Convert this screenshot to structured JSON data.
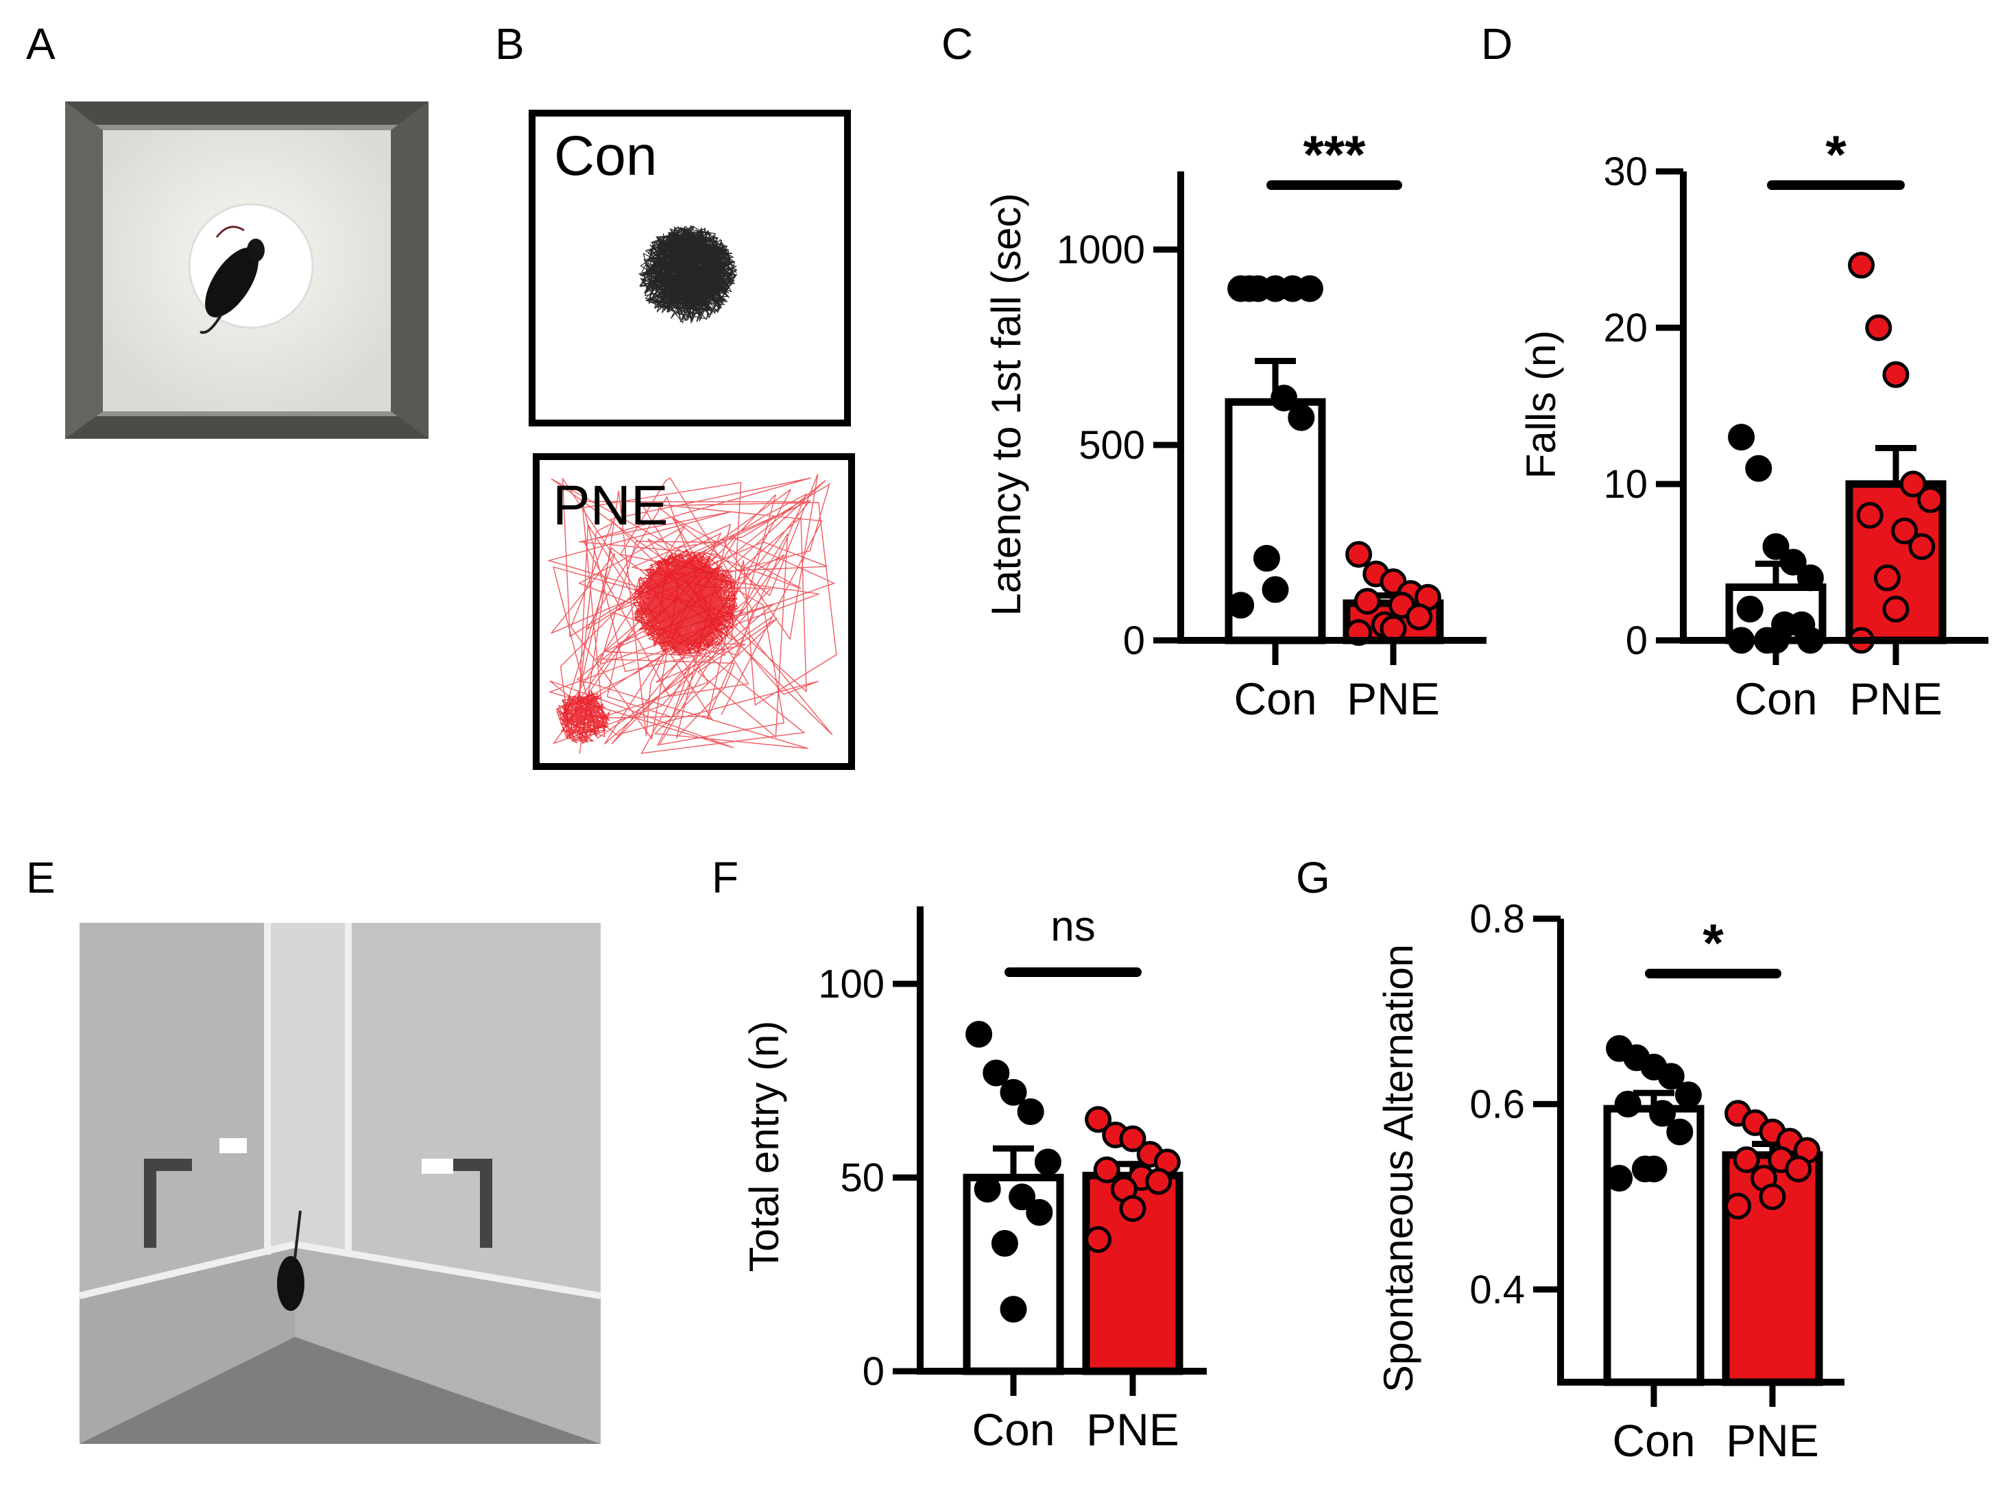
{
  "panels": {
    "A": {
      "label": "A",
      "photo": "mouse-on-circular-platform-photo"
    },
    "B": {
      "label": "B",
      "tracks": [
        {
          "name": "Con",
          "color": "#000000"
        },
        {
          "name": "PNE",
          "color": "#e8141c"
        }
      ]
    },
    "E": {
      "label": "E",
      "photo": "y-maze-photo"
    }
  },
  "colors": {
    "con": "#ffffff",
    "pne": "#e8141c",
    "con_dot": "#000000",
    "pne_dot": "#e8141c",
    "axis": "#000000"
  },
  "chart_data": [
    {
      "panel": "C",
      "type": "bar",
      "categories": [
        "Con",
        "PNE"
      ],
      "values": [
        610,
        95
      ],
      "sem": [
        105,
        20
      ],
      "ylabel": "Latency to 1st fall (sec)",
      "ylim": [
        0,
        1200
      ],
      "yticks": [
        0,
        500,
        1000
      ],
      "ytick_labels": [
        "0",
        "500",
        "1000"
      ],
      "points": [
        [
          900,
          900,
          900,
          900,
          900,
          900,
          620,
          570,
          210,
          130,
          90
        ],
        [
          220,
          170,
          150,
          120,
          110,
          100,
          90,
          60,
          40,
          30,
          20
        ]
      ],
      "significance": "***"
    },
    {
      "panel": "D",
      "type": "bar",
      "categories": [
        "Con",
        "PNE"
      ],
      "values": [
        3.4,
        10
      ],
      "sem": [
        1.5,
        2.3
      ],
      "ylabel": "Falls (n)",
      "ylim": [
        0,
        30
      ],
      "yticks": [
        0,
        10,
        20,
        30
      ],
      "ytick_labels": [
        "0",
        "10",
        "20",
        "30"
      ],
      "points": [
        [
          13,
          11,
          6,
          5,
          4,
          2,
          1,
          1,
          0,
          0,
          0,
          0
        ],
        [
          24,
          20,
          17,
          10,
          9,
          8,
          7,
          6,
          4,
          2,
          0
        ]
      ],
      "significance": "*"
    },
    {
      "panel": "F",
      "type": "bar",
      "categories": [
        "Con",
        "PNE"
      ],
      "values": [
        50,
        50.5
      ],
      "sem": [
        7.5,
        3
      ],
      "ylabel": "Total entry (n)",
      "ylim": [
        0,
        120
      ],
      "yticks": [
        0,
        50,
        100
      ],
      "ytick_labels": [
        "0",
        "50",
        "100"
      ],
      "points": [
        [
          87,
          77,
          72,
          67,
          54,
          47,
          45,
          41,
          33,
          16
        ],
        [
          65,
          61,
          60,
          56,
          54,
          52,
          50,
          49,
          47,
          42,
          34
        ]
      ],
      "significance": "ns"
    },
    {
      "panel": "G",
      "type": "bar",
      "categories": [
        "Con",
        "PNE"
      ],
      "values": [
        0.595,
        0.545
      ],
      "sem": [
        0.017,
        0.012
      ],
      "ylabel": "Spontaneous Alternation",
      "ylim": [
        0.3,
        0.8
      ],
      "yticks": [
        0.4,
        0.6,
        0.8
      ],
      "ytick_labels": [
        "0.4",
        "0.6",
        "0.8"
      ],
      "points": [
        [
          0.66,
          0.65,
          0.64,
          0.63,
          0.61,
          0.6,
          0.59,
          0.57,
          0.53,
          0.53,
          0.52
        ],
        [
          0.59,
          0.58,
          0.57,
          0.56,
          0.55,
          0.54,
          0.54,
          0.53,
          0.52,
          0.5,
          0.49
        ]
      ],
      "significance": "*"
    }
  ]
}
